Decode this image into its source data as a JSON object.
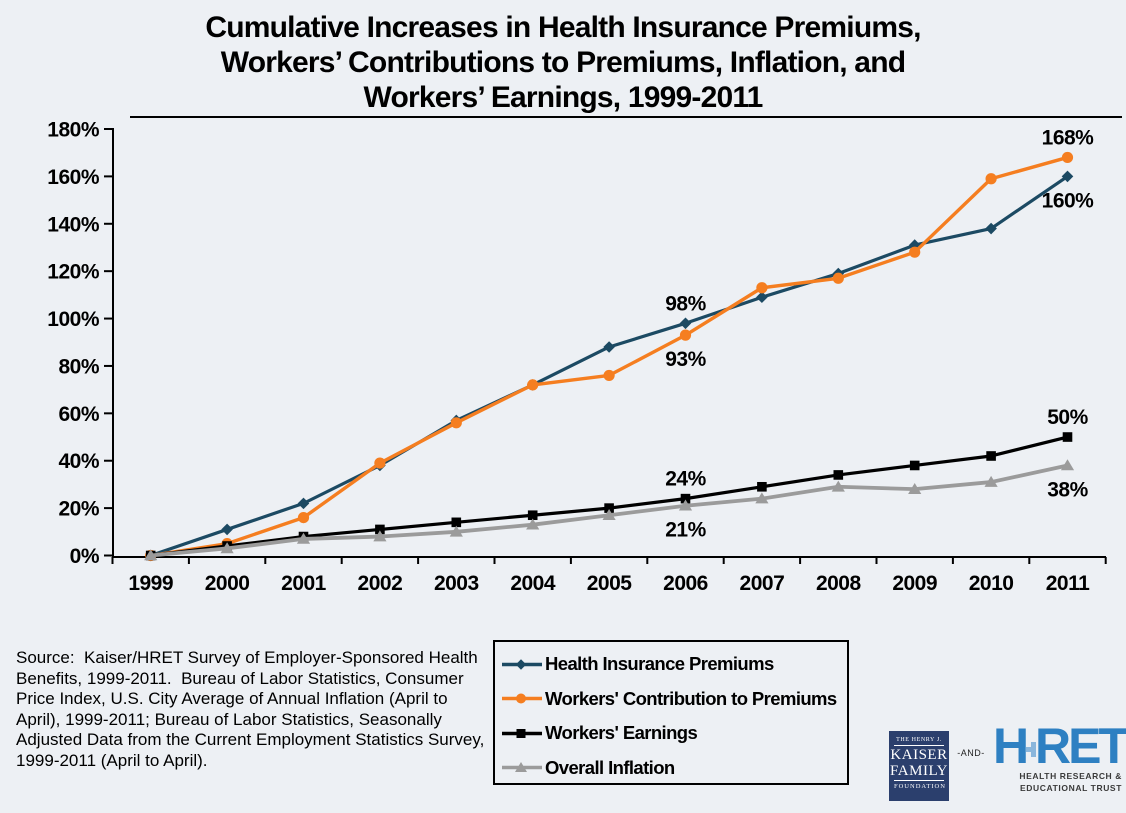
{
  "title": "Cumulative Increases in Health Insurance Premiums,\nWorkers’ Contributions to Premiums, Inflation, and\nWorkers’ Earnings, 1999-2011",
  "source": "Source:  Kaiser/HRET Survey of Employer-Sponsored Health\nBenefits, 1999-2011.  Bureau of Labor Statistics, Consumer\nPrice Index, U.S. City Average of Annual Inflation (April to\nApril), 1999-2011; Bureau of Labor Statistics, Seasonally\nAdjusted Data from the Current Employment Statistics Survey,\n1999-2011 (April to April).",
  "chart_data": {
    "type": "line",
    "x": [
      1999,
      2000,
      2001,
      2002,
      2003,
      2004,
      2005,
      2006,
      2007,
      2008,
      2009,
      2010,
      2011
    ],
    "ylim": [
      0,
      180
    ],
    "ytick_step": 20,
    "ytick_suffix": "%",
    "grid": false,
    "legend_position": "bottom-right",
    "series": [
      {
        "name": "Health Insurance Premiums",
        "color": "#1c4a63",
        "marker": "diamond",
        "values": [
          0,
          11,
          22,
          38,
          57,
          72,
          88,
          98,
          109,
          119,
          131,
          138,
          160
        ]
      },
      {
        "name": "Workers' Contribution to Premiums",
        "color": "#f57e20",
        "marker": "circle",
        "values": [
          0,
          5,
          16,
          39,
          56,
          72,
          76,
          93,
          113,
          117,
          128,
          159,
          168
        ]
      },
      {
        "name": "Workers' Earnings",
        "color": "#000000",
        "marker": "square",
        "values": [
          0,
          4,
          8,
          11,
          14,
          17,
          20,
          24,
          29,
          34,
          38,
          42,
          50
        ]
      },
      {
        "name": "Overall Inflation",
        "color": "#9b9b9b",
        "marker": "triangle",
        "values": [
          0,
          3,
          7,
          8,
          10,
          13,
          17,
          21,
          24,
          29,
          28,
          31,
          38
        ]
      }
    ],
    "annotations": [
      {
        "series": 0,
        "year": 2006,
        "label": "98%",
        "placement": "above"
      },
      {
        "series": 1,
        "year": 2006,
        "label": "93%",
        "placement": "below"
      },
      {
        "series": 2,
        "year": 2006,
        "label": "24%",
        "placement": "above"
      },
      {
        "series": 3,
        "year": 2006,
        "label": "21%",
        "placement": "below"
      },
      {
        "series": 1,
        "year": 2011,
        "label": "168%",
        "placement": "above"
      },
      {
        "series": 0,
        "year": 2011,
        "label": "160%",
        "placement": "below"
      },
      {
        "series": 2,
        "year": 2011,
        "label": "50%",
        "placement": "above"
      },
      {
        "series": 3,
        "year": 2011,
        "label": "38%",
        "placement": "below"
      }
    ]
  },
  "logos": {
    "kff": {
      "line1": "THE HENRY J.",
      "line2": "KAISER",
      "line3": "FAMILY",
      "line4": "FOUNDATION"
    },
    "and_label": "-AND-",
    "hret": {
      "big_h": "H",
      "big_ret": "RET",
      "sub1": "HEALTH RESEARCH &",
      "sub2": "EDUCATIONAL TRUST"
    }
  },
  "colors": {
    "background": "#edf0f4",
    "axis": "#000000",
    "kff_navy": "#2b3f6d",
    "hret_blue": "#2e80c2",
    "hret_cross": "#8ab6dc"
  }
}
